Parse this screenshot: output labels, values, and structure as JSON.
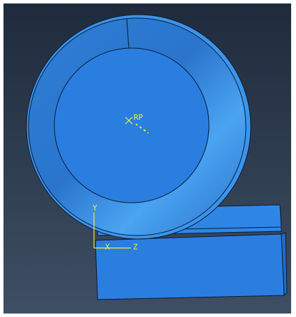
{
  "viewport": {
    "reference_point": "RP",
    "triad": {
      "y": "Y",
      "x": "X",
      "z": "Z"
    }
  }
}
